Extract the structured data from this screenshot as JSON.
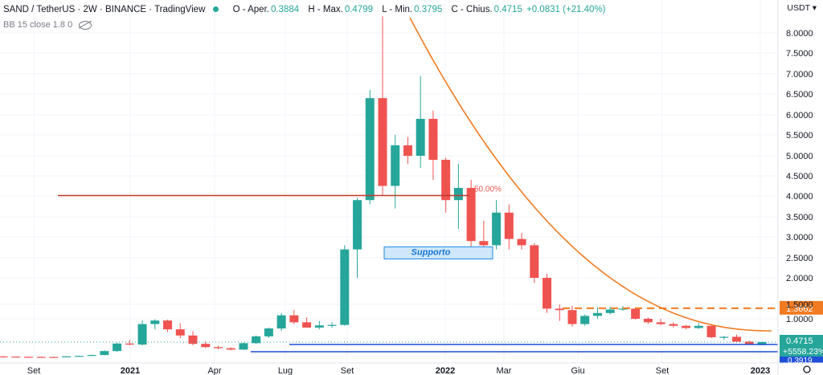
{
  "header": {
    "title": "SAND / TetherUS · 2W · BINANCE · TradingView",
    "open_label": "O - Aper.",
    "open": "0.3884",
    "high_label": "H - Max.",
    "high": "0.4799",
    "low_label": "L - Min.",
    "low": "0.3795",
    "close_label": "C - Chius.",
    "close": "0.4715",
    "change": "+0.0831 (+21.40%)"
  },
  "indicator": {
    "label": "BB 15 close 1.8 0"
  },
  "currency": "USDT ▾",
  "chart_data": {
    "type": "candlestick",
    "title": "SAND / TetherUS · 2W · BINANCE · TradingView",
    "y_ticks": [
      "8.0000",
      "7.5000",
      "7.0000",
      "6.5000",
      "6.0000",
      "5.5000",
      "5.0000",
      "4.5000",
      "4.0000",
      "3.5000",
      "3.0000",
      "2.5000",
      "2.0000",
      "1.5000",
      "1.0000"
    ],
    "x_ticks": [
      "Set",
      "2021",
      "Apr",
      "Lug",
      "Set",
      "2022",
      "Mar",
      "Giu",
      "Set",
      "2023"
    ],
    "ylim": [
      0.3,
      8.5
    ],
    "candles": [
      {
        "o": 0.07,
        "h": 0.08,
        "l": 0.06,
        "c": 0.065
      },
      {
        "o": 0.065,
        "h": 0.072,
        "l": 0.055,
        "c": 0.06
      },
      {
        "o": 0.06,
        "h": 0.068,
        "l": 0.052,
        "c": 0.058
      },
      {
        "o": 0.058,
        "h": 0.066,
        "l": 0.05,
        "c": 0.055
      },
      {
        "o": 0.055,
        "h": 0.064,
        "l": 0.048,
        "c": 0.052
      },
      {
        "o": 0.052,
        "h": 0.075,
        "l": 0.05,
        "c": 0.072
      },
      {
        "o": 0.072,
        "h": 0.09,
        "l": 0.068,
        "c": 0.085
      },
      {
        "o": 0.085,
        "h": 0.12,
        "l": 0.08,
        "c": 0.11
      },
      {
        "o": 0.11,
        "h": 0.24,
        "l": 0.1,
        "c": 0.22
      },
      {
        "o": 0.22,
        "h": 0.45,
        "l": 0.2,
        "c": 0.43
      },
      {
        "o": 0.43,
        "h": 0.52,
        "l": 0.38,
        "c": 0.4
      },
      {
        "o": 0.4,
        "h": 0.96,
        "l": 0.38,
        "c": 0.88
      },
      {
        "o": 0.88,
        "h": 0.99,
        "l": 0.76,
        "c": 0.96
      },
      {
        "o": 0.96,
        "h": 0.98,
        "l": 0.7,
        "c": 0.76
      },
      {
        "o": 0.76,
        "h": 0.9,
        "l": 0.56,
        "c": 0.62
      },
      {
        "o": 0.62,
        "h": 0.72,
        "l": 0.38,
        "c": 0.42
      },
      {
        "o": 0.42,
        "h": 0.48,
        "l": 0.3,
        "c": 0.33
      },
      {
        "o": 0.33,
        "h": 0.37,
        "l": 0.27,
        "c": 0.3
      },
      {
        "o": 0.3,
        "h": 0.32,
        "l": 0.24,
        "c": 0.26
      },
      {
        "o": 0.26,
        "h": 0.46,
        "l": 0.25,
        "c": 0.44
      },
      {
        "o": 0.44,
        "h": 0.62,
        "l": 0.42,
        "c": 0.6
      },
      {
        "o": 0.6,
        "h": 0.8,
        "l": 0.56,
        "c": 0.78
      },
      {
        "o": 0.78,
        "h": 1.2,
        "l": 0.72,
        "c": 1.12
      },
      {
        "o": 1.12,
        "h": 1.3,
        "l": 0.88,
        "c": 0.92
      },
      {
        "o": 0.92,
        "h": 1.05,
        "l": 0.8,
        "c": 0.8
      },
      {
        "o": 0.8,
        "h": 0.95,
        "l": 0.76,
        "c": 0.85
      },
      {
        "o": 0.85,
        "h": 0.92,
        "l": 0.8,
        "c": 0.86
      },
      {
        "o": 0.86,
        "h": 2.8,
        "l": 0.84,
        "c": 2.7
      },
      {
        "o": 2.7,
        "h": 3.95,
        "l": 2.0,
        "c": 3.9
      },
      {
        "o": 3.9,
        "h": 6.6,
        "l": 3.8,
        "c": 6.4
      },
      {
        "o": 6.4,
        "h": 8.4,
        "l": 4.0,
        "c": 4.25
      },
      {
        "o": 4.25,
        "h": 5.5,
        "l": 3.7,
        "c": 5.25
      },
      {
        "o": 5.25,
        "h": 5.45,
        "l": 4.8,
        "c": 5.0
      },
      {
        "o": 5.0,
        "h": 6.95,
        "l": 4.7,
        "c": 5.9
      },
      {
        "o": 5.9,
        "h": 6.1,
        "l": 4.4,
        "c": 4.9
      },
      {
        "o": 4.9,
        "h": 4.95,
        "l": 3.6,
        "c": 3.9
      },
      {
        "o": 3.9,
        "h": 4.8,
        "l": 3.2,
        "c": 4.2
      },
      {
        "o": 4.2,
        "h": 4.4,
        "l": 2.6,
        "c": 2.9
      },
      {
        "o": 2.9,
        "h": 3.4,
        "l": 2.6,
        "c": 2.8
      },
      {
        "o": 2.8,
        "h": 3.9,
        "l": 2.7,
        "c": 3.6
      },
      {
        "o": 3.6,
        "h": 3.8,
        "l": 2.7,
        "c": 2.95
      },
      {
        "o": 2.95,
        "h": 3.1,
        "l": 2.7,
        "c": 2.8
      },
      {
        "o": 2.8,
        "h": 2.85,
        "l": 1.9,
        "c": 2.0
      },
      {
        "o": 2.0,
        "h": 2.1,
        "l": 1.2,
        "c": 1.35
      },
      {
        "o": 1.35,
        "h": 1.5,
        "l": 0.95,
        "c": 1.3
      },
      {
        "o": 1.3,
        "h": 1.45,
        "l": 0.82,
        "c": 0.88
      },
      {
        "o": 0.88,
        "h": 1.15,
        "l": 0.84,
        "c": 1.1
      },
      {
        "o": 1.1,
        "h": 1.4,
        "l": 1.0,
        "c": 1.2
      },
      {
        "o": 1.2,
        "h": 1.42,
        "l": 1.15,
        "c": 1.32
      },
      {
        "o": 1.32,
        "h": 1.44,
        "l": 1.28,
        "c": 1.35
      },
      {
        "o": 1.35,
        "h": 1.4,
        "l": 0.98,
        "c": 1.0
      },
      {
        "o": 1.0,
        "h": 1.05,
        "l": 0.88,
        "c": 0.92
      },
      {
        "o": 0.92,
        "h": 1.0,
        "l": 0.85,
        "c": 0.88
      },
      {
        "o": 0.88,
        "h": 0.92,
        "l": 0.8,
        "c": 0.84
      },
      {
        "o": 0.84,
        "h": 0.86,
        "l": 0.76,
        "c": 0.79
      },
      {
        "o": 0.79,
        "h": 0.9,
        "l": 0.77,
        "c": 0.84
      },
      {
        "o": 0.84,
        "h": 0.86,
        "l": 0.56,
        "c": 0.58
      },
      {
        "o": 0.58,
        "h": 0.61,
        "l": 0.52,
        "c": 0.59
      },
      {
        "o": 0.59,
        "h": 0.64,
        "l": 0.47,
        "c": 0.48
      },
      {
        "o": 0.48,
        "h": 0.5,
        "l": 0.39,
        "c": 0.4
      },
      {
        "o": 0.3884,
        "h": 0.4799,
        "l": 0.3795,
        "c": 0.4715
      }
    ],
    "annotations": {
      "hline_red": 4.25,
      "fib_label": "50.00%",
      "support_label": "Supporto",
      "support_range": [
        2.55,
        2.82
      ],
      "dashed_level": 1.3662,
      "blue_line_1": 0.44,
      "blue_line_2": 0.35
    },
    "price_labels": {
      "dashed": "1.3662",
      "last": "0.4715",
      "pct": "+5558.23%",
      "blue": "0.3919"
    }
  }
}
